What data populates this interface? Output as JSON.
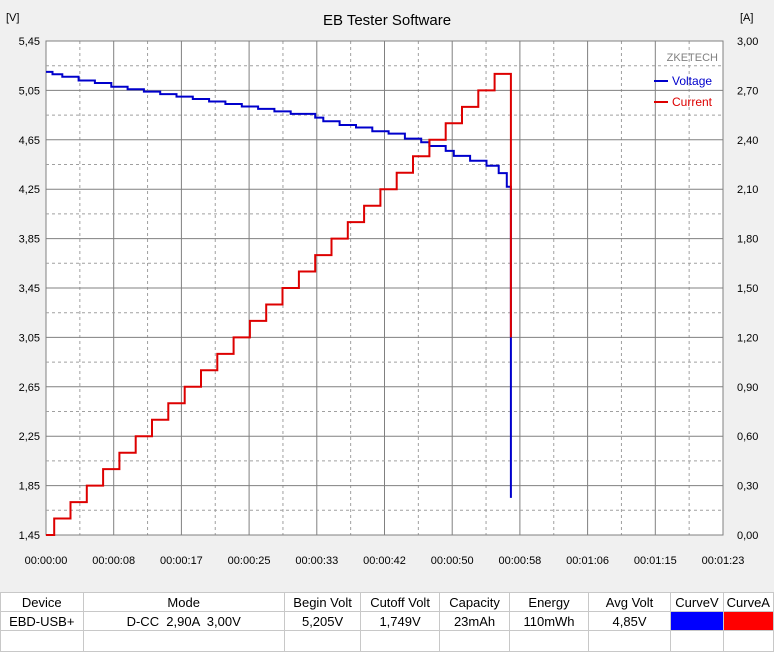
{
  "chart_data": {
    "type": "line",
    "title": "EB Tester Software",
    "watermark": "ZKETECH",
    "y_left_unit": "[V]",
    "y_right_unit": "[A]",
    "y_left_ticks": [
      "5,45",
      "5,05",
      "4,65",
      "4,25",
      "3,85",
      "3,45",
      "3,05",
      "2,65",
      "2,25",
      "1,85",
      "1,45"
    ],
    "y_right_ticks": [
      "3,00",
      "2,70",
      "2,40",
      "2,10",
      "1,80",
      "1,50",
      "1,20",
      "0,90",
      "0,60",
      "0,30",
      "0,00"
    ],
    "x_ticks": [
      "00:00:00",
      "00:00:08",
      "00:00:17",
      "00:00:25",
      "00:00:33",
      "00:00:42",
      "00:00:50",
      "00:00:58",
      "00:01:06",
      "00:01:15",
      "00:01:23"
    ],
    "ylim_left": [
      1.45,
      5.45
    ],
    "ylim_right": [
      0,
      3.0
    ],
    "xlim": [
      0,
      83
    ],
    "grid": true,
    "legend_position": "top-right",
    "series": [
      {
        "name": "Voltage",
        "axis": "left",
        "color": "#0000cc",
        "points": [
          [
            0,
            5.2
          ],
          [
            0.8,
            5.18
          ],
          [
            2,
            5.16
          ],
          [
            4,
            5.13
          ],
          [
            6,
            5.11
          ],
          [
            8,
            5.08
          ],
          [
            10,
            5.06
          ],
          [
            12,
            5.04
          ],
          [
            14,
            5.02
          ],
          [
            16,
            5.0
          ],
          [
            18,
            4.98
          ],
          [
            20,
            4.96
          ],
          [
            22,
            4.94
          ],
          [
            24,
            4.92
          ],
          [
            26,
            4.9
          ],
          [
            28,
            4.88
          ],
          [
            30,
            4.86
          ],
          [
            33,
            4.83
          ],
          [
            34,
            4.8
          ],
          [
            36,
            4.77
          ],
          [
            38,
            4.75
          ],
          [
            40,
            4.72
          ],
          [
            42,
            4.7
          ],
          [
            44,
            4.66
          ],
          [
            46,
            4.63
          ],
          [
            47,
            4.6
          ],
          [
            49,
            4.56
          ],
          [
            50,
            4.52
          ],
          [
            52,
            4.48
          ],
          [
            54,
            4.44
          ],
          [
            55.5,
            4.38
          ],
          [
            56.5,
            4.27
          ],
          [
            57,
            4.27
          ],
          [
            57,
            3.05
          ],
          [
            57,
            1.75
          ]
        ]
      },
      {
        "name": "Current",
        "axis": "right",
        "color": "#dd0000",
        "points": [
          [
            0,
            0.0
          ],
          [
            1,
            0.1
          ],
          [
            3,
            0.2
          ],
          [
            5,
            0.3
          ],
          [
            7,
            0.4
          ],
          [
            9,
            0.5
          ],
          [
            11,
            0.6
          ],
          [
            13,
            0.7
          ],
          [
            15,
            0.8
          ],
          [
            17,
            0.9
          ],
          [
            19,
            1.0
          ],
          [
            21,
            1.1
          ],
          [
            23,
            1.2
          ],
          [
            25,
            1.3
          ],
          [
            27,
            1.4
          ],
          [
            29,
            1.5
          ],
          [
            31,
            1.6
          ],
          [
            33,
            1.7
          ],
          [
            35,
            1.8
          ],
          [
            37,
            1.9
          ],
          [
            39,
            2.0
          ],
          [
            41,
            2.1
          ],
          [
            43,
            2.2
          ],
          [
            45,
            2.3
          ],
          [
            47,
            2.4
          ],
          [
            49,
            2.5
          ],
          [
            51,
            2.6
          ],
          [
            53,
            2.7
          ],
          [
            55,
            2.8
          ],
          [
            57,
            2.8
          ],
          [
            57,
            1.2
          ]
        ]
      }
    ]
  },
  "table": {
    "headers": [
      "Device",
      "Mode",
      "Begin Volt",
      "Cutoff Volt",
      "Capacity",
      "Energy",
      "Avg Volt",
      "CurveV",
      "CurveA"
    ],
    "row": [
      "EBD-USB+",
      "D-CC  2,90A  3,00V",
      "5,205V",
      "1,749V",
      "23mAh",
      "110mWh",
      "4,85V",
      "",
      ""
    ],
    "curve_colors": [
      "#0000ff",
      "#ff0000"
    ]
  }
}
